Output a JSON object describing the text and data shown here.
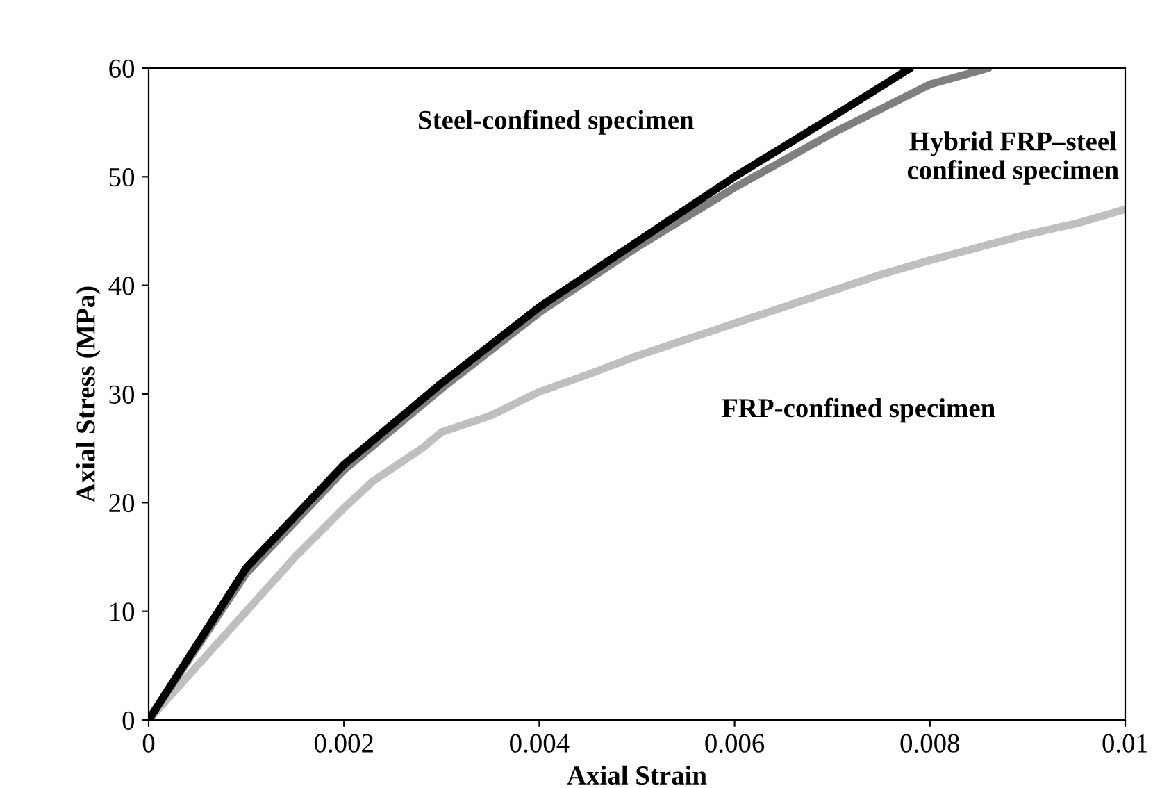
{
  "chart_data": {
    "type": "line",
    "xlabel": "Axial Strain",
    "ylabel": "Axial Stress (MPa)",
    "xlim": [
      0,
      0.01
    ],
    "xticks": [
      0,
      0.002,
      0.004,
      0.006,
      0.008,
      0.01
    ],
    "ylim": [
      0,
      60
    ],
    "yticks": [
      0,
      10,
      20,
      30,
      40,
      50,
      60
    ],
    "grid": false,
    "legend": false,
    "marker": "none",
    "line_style": "solid",
    "series": [
      {
        "name": "FRP-confined specimen",
        "color": "#bfbfbf",
        "x": [
          0,
          0.0005,
          0.001,
          0.0015,
          0.002,
          0.0023,
          0.0028,
          0.003,
          0.0035,
          0.004,
          0.0045,
          0.005,
          0.0055,
          0.006,
          0.0065,
          0.007,
          0.0075,
          0.008,
          0.0085,
          0.009,
          0.0095,
          0.01
        ],
        "values": [
          0,
          5,
          10,
          15,
          19.5,
          22,
          25,
          26.5,
          28,
          30.2,
          31.8,
          33.5,
          35,
          36.5,
          38,
          39.5,
          41,
          42.3,
          43.5,
          44.7,
          45.7,
          47
        ]
      },
      {
        "name": "Hybrid FRP–steel\nconfined specimen",
        "color": "#7f7f7f",
        "x": [
          0,
          0.001,
          0.002,
          0.003,
          0.004,
          0.005,
          0.006,
          0.007,
          0.008,
          0.0086
        ],
        "values": [
          0,
          13.5,
          23,
          30.5,
          37.5,
          43.5,
          49,
          54,
          58.5,
          60
        ]
      },
      {
        "name": "Steel-confined specimen",
        "color": "#000000",
        "x": [
          0,
          0.001,
          0.002,
          0.003,
          0.004,
          0.005,
          0.006,
          0.007,
          0.0078
        ],
        "values": [
          0,
          14,
          23.5,
          31,
          38,
          44,
          50,
          55.5,
          60
        ]
      }
    ]
  }
}
